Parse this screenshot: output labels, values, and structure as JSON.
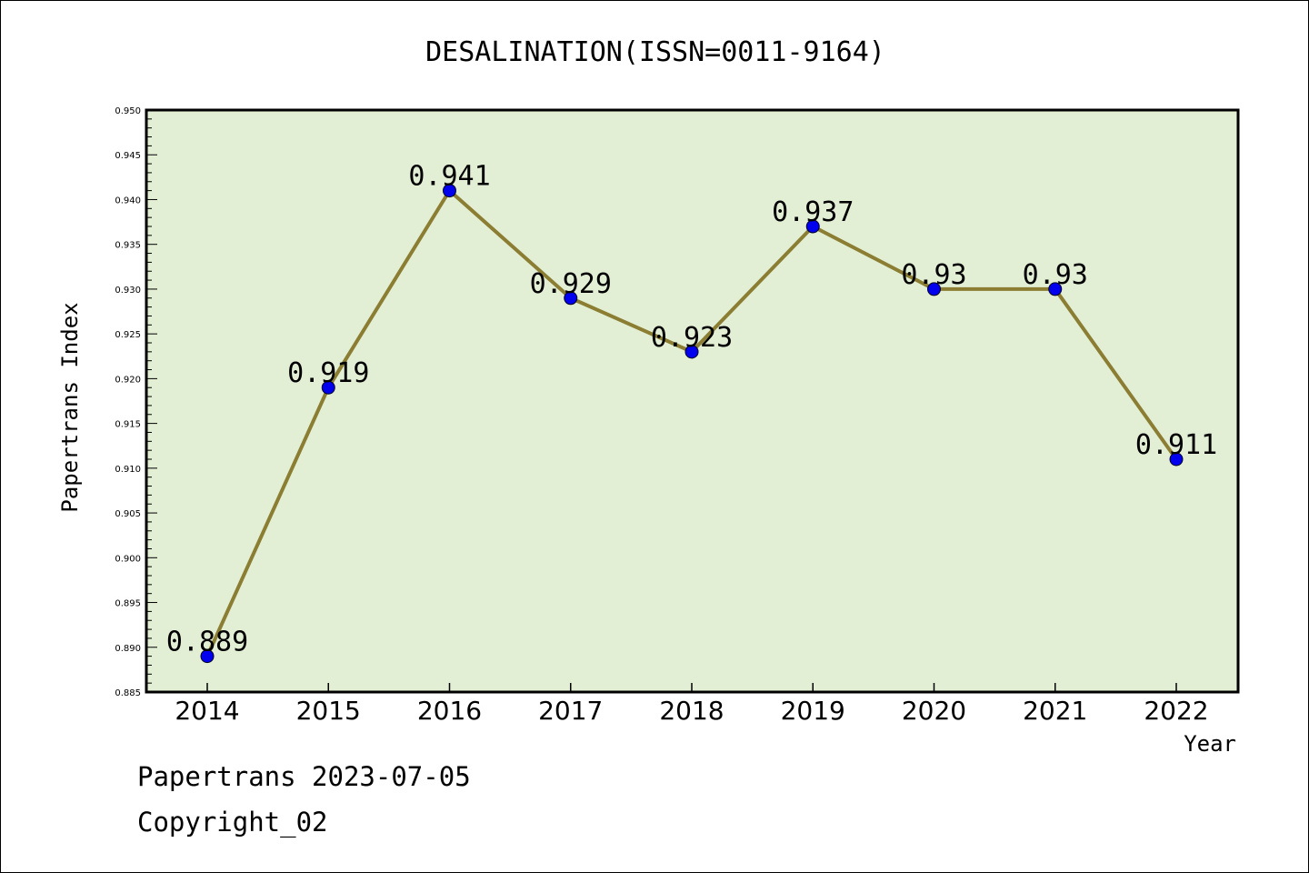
{
  "chart_data": {
    "type": "line",
    "title": "DESALINATION(ISSN=0011-9164)",
    "xlabel": "Year",
    "ylabel": "Papertrans Index",
    "categories": [
      "2014",
      "2015",
      "2016",
      "2017",
      "2018",
      "2019",
      "2020",
      "2021",
      "2022"
    ],
    "values": [
      0.889,
      0.919,
      0.941,
      0.929,
      0.923,
      0.937,
      0.93,
      0.93,
      0.911
    ],
    "data_labels": [
      "0.889",
      "0.919",
      "0.941",
      "0.929",
      "0.923",
      "0.937",
      "0.93",
      "0.93",
      "0.911"
    ],
    "ylim": [
      0.885,
      0.95
    ],
    "yticks": [
      "0.885",
      "0.890",
      "0.895",
      "0.900",
      "0.905",
      "0.910",
      "0.915",
      "0.920",
      "0.925",
      "0.930",
      "0.935",
      "0.940",
      "0.945",
      "0.950"
    ],
    "grid": false,
    "colors": {
      "plot_background": "#e2efd5",
      "line": "#8b7d32",
      "marker": "#0000ee"
    }
  },
  "footer": {
    "source": "Papertrans 2023-07-05",
    "copyright": "Copyright_02"
  }
}
